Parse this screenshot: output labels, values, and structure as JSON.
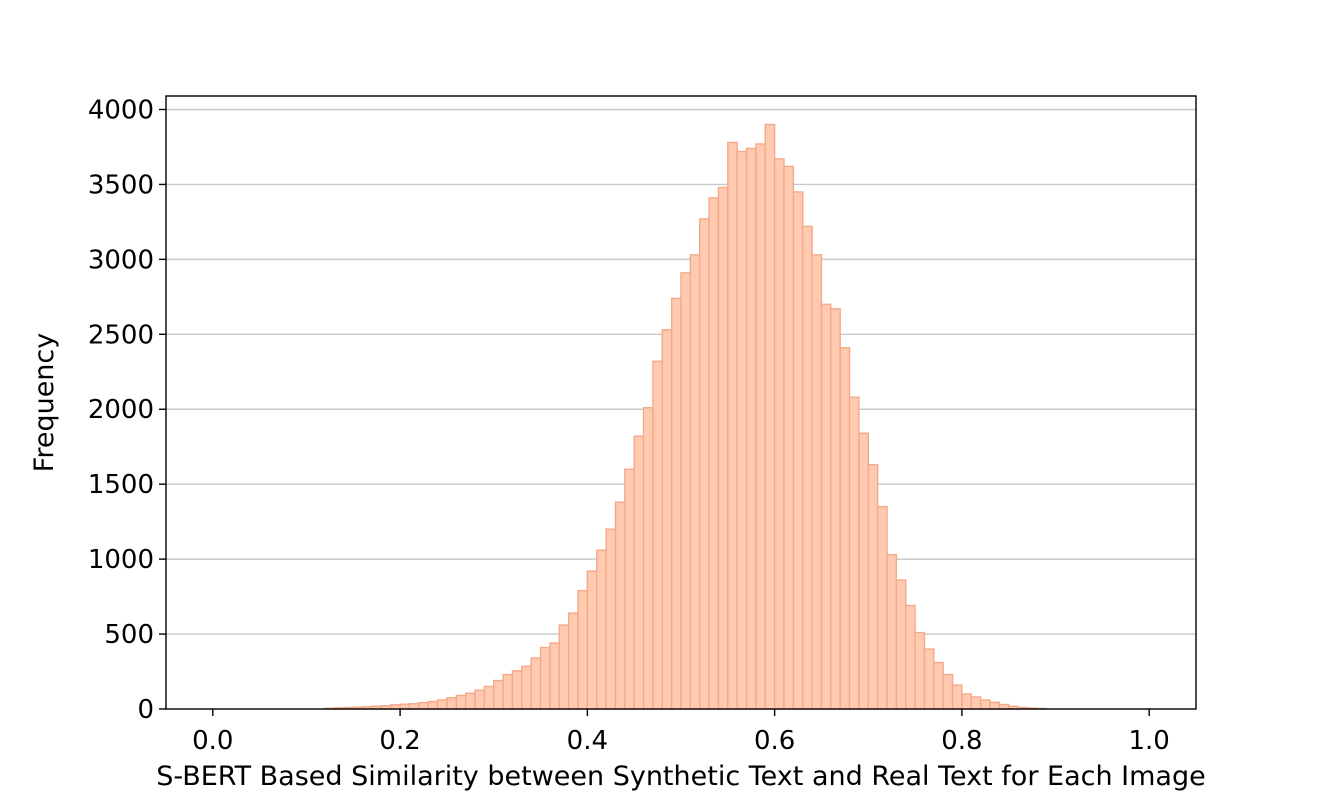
{
  "chart_data": {
    "type": "bar",
    "xlabel": "S-BERT Based Similarity between Synthetic Text and Real Text for Each Image",
    "ylabel": "Frequency",
    "xlim": [
      -0.05,
      1.05
    ],
    "ylim": [
      0,
      4090
    ],
    "xticks": [
      "0.0",
      "0.2",
      "0.4",
      "0.6",
      "0.8",
      "1.0"
    ],
    "xtick_values": [
      0.0,
      0.2,
      0.4,
      0.6,
      0.8,
      1.0
    ],
    "yticks": [
      "0",
      "500",
      "1000",
      "1500",
      "2000",
      "2500",
      "3000",
      "3500",
      "4000"
    ],
    "ytick_values": [
      0,
      500,
      1000,
      1500,
      2000,
      2500,
      3000,
      3500,
      4000
    ],
    "grid": "horizontal",
    "bins": {
      "start": 0.12,
      "width": 0.01,
      "values": [
        5,
        8,
        10,
        12,
        15,
        18,
        22,
        28,
        32,
        35,
        42,
        50,
        60,
        75,
        90,
        105,
        125,
        150,
        190,
        230,
        255,
        285,
        340,
        410,
        440,
        560,
        640,
        790,
        920,
        1060,
        1200,
        1380,
        1600,
        1820,
        2010,
        2320,
        2530,
        2740,
        2910,
        3030,
        3270,
        3410,
        3480,
        3780,
        3720,
        3740,
        3770,
        3900,
        3670,
        3620,
        3450,
        3220,
        3030,
        2700,
        2670,
        2410,
        2080,
        1840,
        1630,
        1350,
        1030,
        860,
        690,
        510,
        400,
        310,
        230,
        160,
        100,
        80,
        60,
        45,
        30,
        18,
        10,
        6,
        3
      ]
    }
  }
}
